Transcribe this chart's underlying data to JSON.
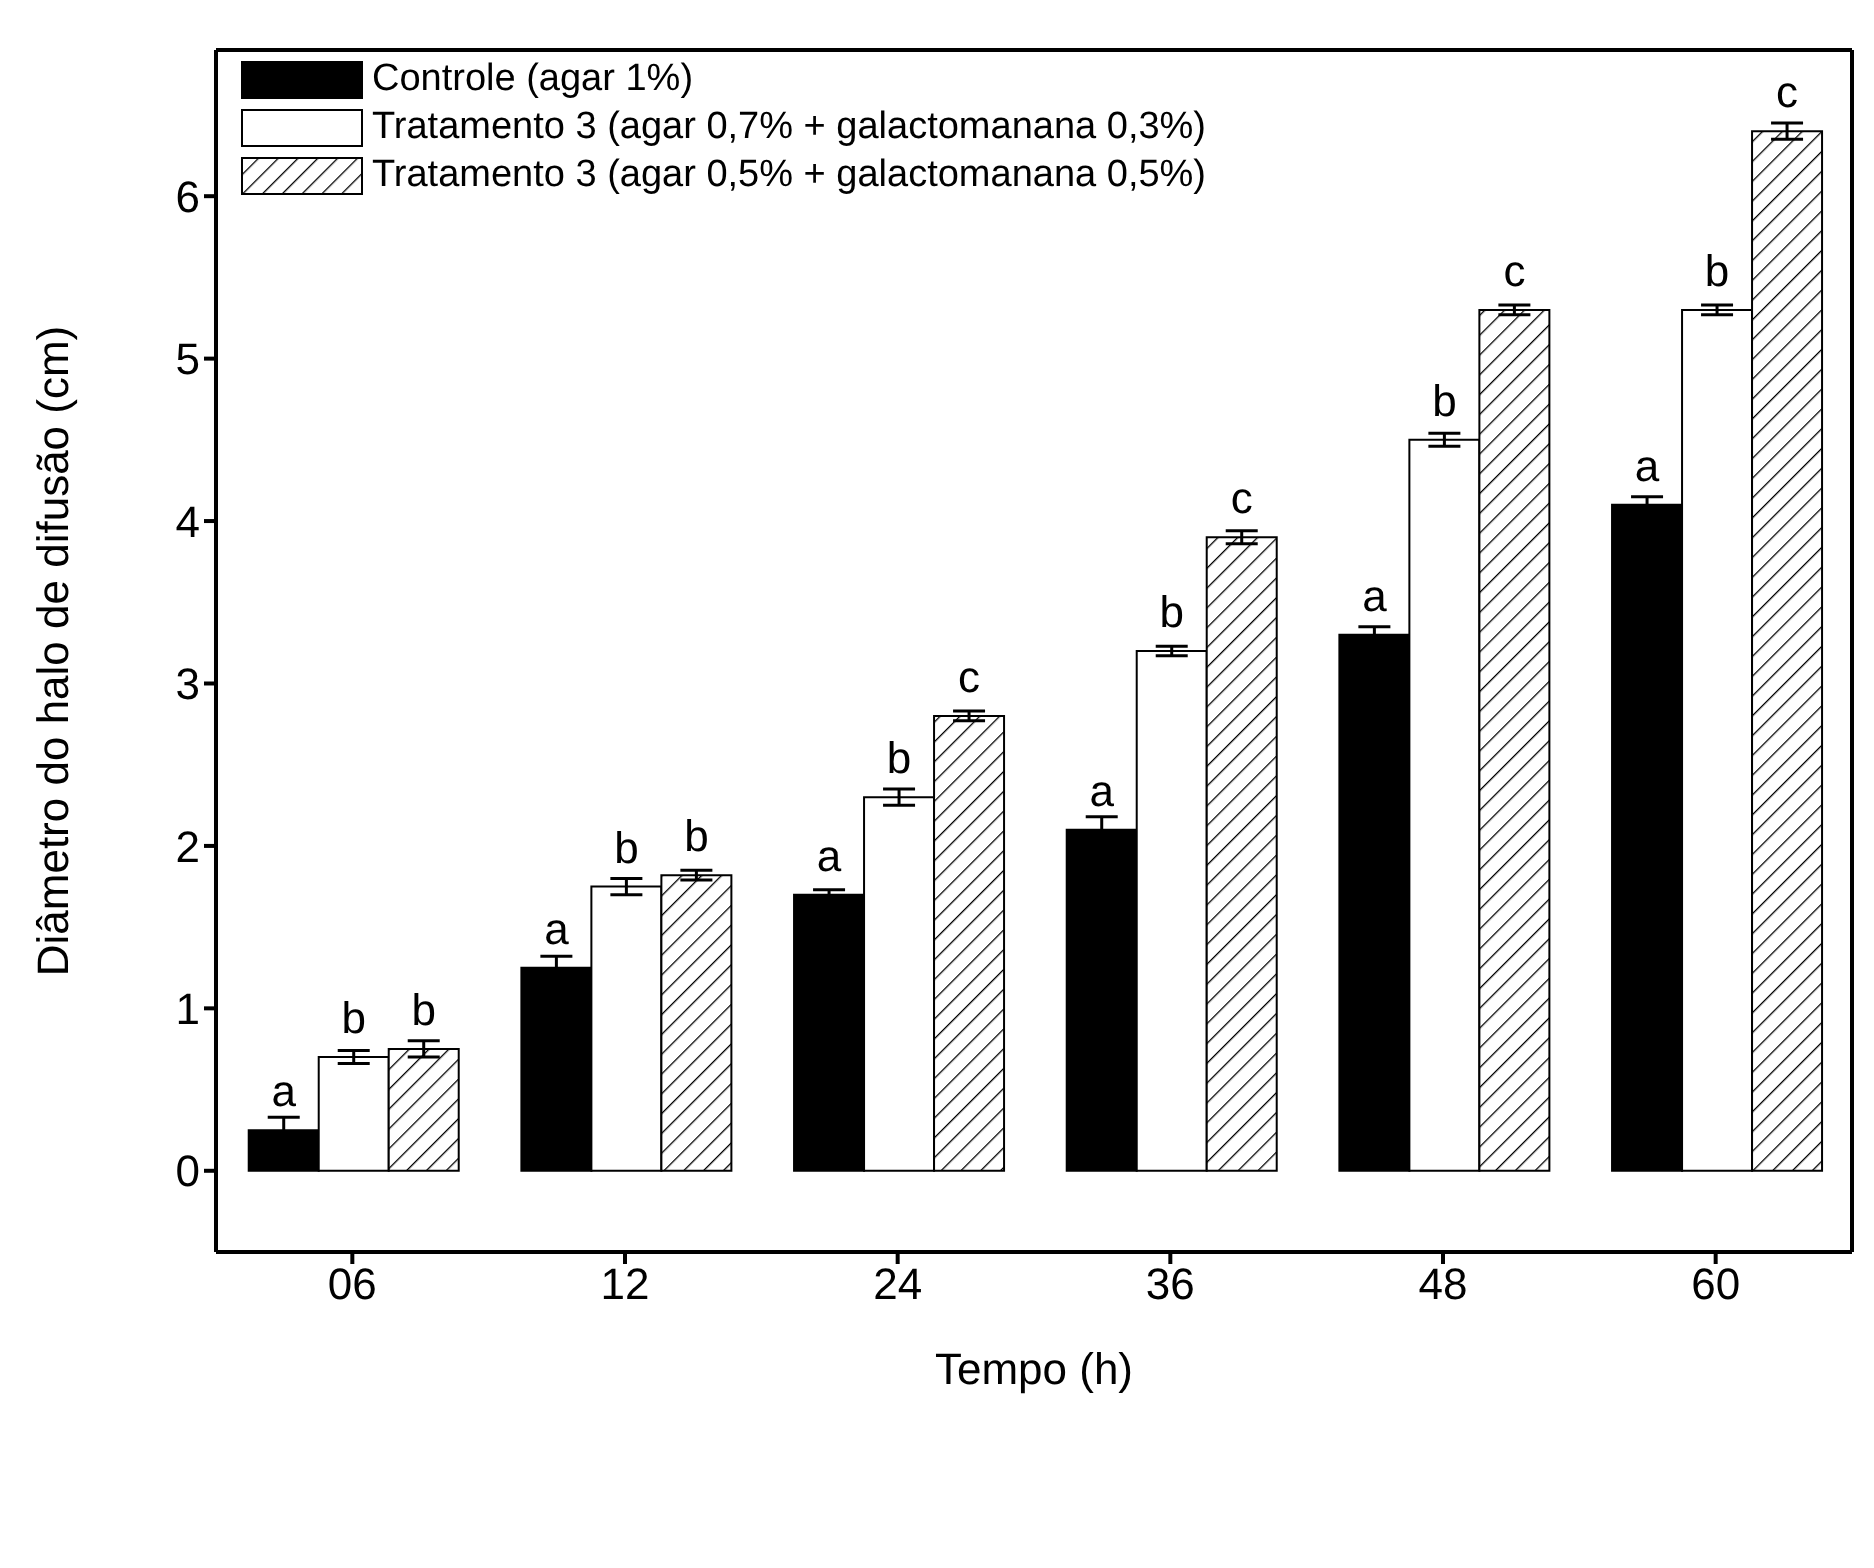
{
  "chart_data": {
    "type": "bar",
    "xlabel": "Tempo (h)",
    "ylabel": "Diâmetro do halo de difusão (cm)",
    "categories": [
      "06",
      "12",
      "24",
      "36",
      "48",
      "60"
    ],
    "series": [
      {
        "name": "Controle (agar 1%)",
        "color": "#000000",
        "values": [
          0.25,
          1.25,
          1.7,
          2.1,
          3.3,
          4.1
        ],
        "errors": [
          0.08,
          0.07,
          0.03,
          0.08,
          0.05,
          0.05
        ],
        "value_labels": [
          "a",
          "a",
          "a",
          "a",
          "a",
          "a"
        ]
      },
      {
        "name": "Tratamento 3 (agar 0,7% + galactomanana 0,3%)",
        "color": "#ffffff",
        "values": [
          0.7,
          1.75,
          2.3,
          3.2,
          4.5,
          5.3
        ],
        "errors": [
          0.04,
          0.05,
          0.05,
          0.03,
          0.04,
          0.03
        ],
        "value_labels": [
          "b",
          "b",
          "b",
          "b",
          "b",
          "b"
        ]
      },
      {
        "name": "Tratamento 3 (agar 0,5% + galactomanana 0,5%)",
        "color": "#000000",
        "values": [
          0.75,
          1.82,
          2.8,
          3.9,
          5.3,
          6.4
        ],
        "errors": [
          0.05,
          0.03,
          0.03,
          0.04,
          0.03,
          0.05
        ],
        "value_labels": [
          "b",
          "b",
          "c",
          "c",
          "c",
          "c"
        ]
      }
    ],
    "ylim": [
      -0.5,
      6.9
    ],
    "yticks": [
      0,
      1,
      2,
      3,
      4,
      5,
      6
    ],
    "legend": "top left"
  }
}
